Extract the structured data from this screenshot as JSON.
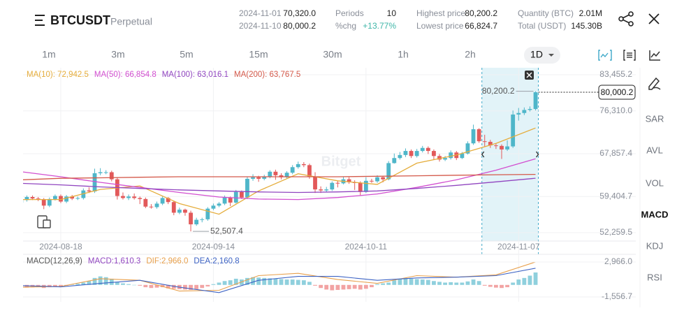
{
  "header": {
    "symbol": "BTCUSDT",
    "contract": "Perpetual",
    "range": {
      "start": {
        "date": "2024-11-01",
        "price": "70,320.0"
      },
      "end": {
        "date": "2024-11-10",
        "price": "80,000.2"
      }
    },
    "stats": [
      {
        "label": "Periods",
        "value": "10"
      },
      {
        "label": "%chg",
        "value": "+13.77%"
      },
      {
        "label": "Highest price",
        "value": "80,200.2"
      },
      {
        "label": "Lowest price",
        "value": "66,824.7"
      },
      {
        "label": "Quantity (BTC)",
        "value": "2.01M"
      },
      {
        "label": "Total (USDT)",
        "value": "145.30B"
      }
    ]
  },
  "timeframes": [
    "1m",
    "3m",
    "5m",
    "15m",
    "30m",
    "1h",
    "2h",
    "1D"
  ],
  "side_indicators": [
    "SAR",
    "AVL",
    "VOL",
    "MACD",
    "KDJ",
    "RSI"
  ],
  "chart_data": {
    "type": "candlestick",
    "watermark": "Bitget",
    "up_color": "#4fb6c9",
    "down_color": "#e2595a",
    "x": [
      "2024-08-11",
      "2024-08-12",
      "2024-08-13",
      "2024-08-14",
      "2024-08-15",
      "2024-08-16",
      "2024-08-17",
      "2024-08-18",
      "2024-08-19",
      "2024-08-20",
      "2024-08-21",
      "2024-08-22",
      "2024-08-23",
      "2024-08-24",
      "2024-08-25",
      "2024-08-26",
      "2024-08-27",
      "2024-08-28",
      "2024-08-29",
      "2024-08-30",
      "2024-08-31",
      "2024-09-01",
      "2024-09-02",
      "2024-09-03",
      "2024-09-04",
      "2024-09-05",
      "2024-09-06",
      "2024-09-07",
      "2024-09-08",
      "2024-09-09",
      "2024-09-10",
      "2024-09-11",
      "2024-09-12",
      "2024-09-13",
      "2024-09-14",
      "2024-09-15",
      "2024-09-16",
      "2024-09-17",
      "2024-09-18",
      "2024-09-19",
      "2024-09-20",
      "2024-09-21",
      "2024-09-22",
      "2024-09-23",
      "2024-09-24",
      "2024-09-25",
      "2024-09-26",
      "2024-09-27",
      "2024-09-28",
      "2024-09-29",
      "2024-09-30",
      "2024-10-01",
      "2024-10-02",
      "2024-10-03",
      "2024-10-04",
      "2024-10-05",
      "2024-10-06",
      "2024-10-07",
      "2024-10-08",
      "2024-10-09",
      "2024-10-10",
      "2024-10-11",
      "2024-10-12",
      "2024-10-13",
      "2024-10-14",
      "2024-10-15",
      "2024-10-16",
      "2024-10-17",
      "2024-10-18",
      "2024-10-19",
      "2024-10-20",
      "2024-10-21",
      "2024-10-22",
      "2024-10-23",
      "2024-10-24",
      "2024-10-25",
      "2024-10-26",
      "2024-10-27",
      "2024-10-28",
      "2024-10-29",
      "2024-10-30",
      "2024-10-31",
      "2024-11-01",
      "2024-11-02",
      "2024-11-03",
      "2024-11-04",
      "2024-11-05",
      "2024-11-06",
      "2024-11-07",
      "2024-11-08",
      "2024-11-09",
      "2024-11-10"
    ],
    "ohlc": [
      [
        58200,
        59000,
        57900,
        58700
      ],
      [
        58700,
        59600,
        58400,
        59300
      ],
      [
        59300,
        59600,
        58700,
        59000
      ],
      [
        59000,
        59300,
        58500,
        58800
      ],
      [
        58800,
        59100,
        56900,
        57600
      ],
      [
        57600,
        59200,
        57300,
        58900
      ],
      [
        58900,
        59800,
        58600,
        59500
      ],
      [
        59500,
        59800,
        58100,
        58400
      ],
      [
        58400,
        59700,
        58100,
        59400
      ],
      [
        59400,
        59700,
        58700,
        59000
      ],
      [
        59000,
        59400,
        58700,
        59100
      ],
      [
        59100,
        61000,
        58800,
        60600
      ],
      [
        60600,
        61200,
        60100,
        60400
      ],
      [
        60400,
        64900,
        60100,
        64000
      ],
      [
        64000,
        65000,
        63600,
        64200
      ],
      [
        64200,
        64600,
        63800,
        64200
      ],
      [
        64200,
        64500,
        62400,
        62800
      ],
      [
        62800,
        63100,
        58800,
        59500
      ],
      [
        59500,
        60200,
        58800,
        59100
      ],
      [
        59100,
        59800,
        58700,
        59400
      ],
      [
        59400,
        60000,
        58800,
        59100
      ],
      [
        59100,
        59400,
        57900,
        58900
      ],
      [
        58900,
        59200,
        57100,
        57400
      ],
      [
        57400,
        57900,
        57000,
        57300
      ],
      [
        57300,
        58400,
        57000,
        58000
      ],
      [
        58000,
        59400,
        57700,
        59100
      ],
      [
        59100,
        59300,
        57900,
        58300
      ],
      [
        58300,
        58600,
        55700,
        56200
      ],
      [
        56200,
        57200,
        55900,
        56800
      ],
      [
        56800,
        57000,
        55600,
        56200
      ],
      [
        56200,
        56600,
        52507.4,
        53900
      ],
      [
        53900,
        55200,
        53600,
        54800
      ],
      [
        54800,
        55200,
        54300,
        54900
      ],
      [
        54900,
        57300,
        54600,
        57000
      ],
      [
        57000,
        58000,
        56700,
        57600
      ],
      [
        57600,
        58300,
        57300,
        58000
      ],
      [
        58000,
        59600,
        57700,
        59200
      ],
      [
        59200,
        59400,
        57500,
        58200
      ],
      [
        58200,
        60700,
        58000,
        60300
      ],
      [
        60300,
        60600,
        58900,
        59200
      ],
      [
        59200,
        63300,
        58900,
        62900
      ],
      [
        62900,
        63800,
        62500,
        63200
      ],
      [
        63200,
        63500,
        62300,
        62900
      ],
      [
        62900,
        63700,
        62600,
        63300
      ],
      [
        63300,
        64600,
        63000,
        64300
      ],
      [
        64300,
        64700,
        62700,
        63600
      ],
      [
        63600,
        64000,
        62800,
        63200
      ],
      [
        63200,
        64400,
        62900,
        64100
      ],
      [
        64100,
        65600,
        63800,
        65200
      ],
      [
        65200,
        66300,
        64900,
        65800
      ],
      [
        65800,
        66200,
        65200,
        65600
      ],
      [
        65600,
        65900,
        62900,
        63300
      ],
      [
        63300,
        64200,
        60100,
        60800
      ],
      [
        60800,
        61400,
        60100,
        60600
      ],
      [
        60600,
        61300,
        60300,
        60800
      ],
      [
        60800,
        62400,
        60500,
        62100
      ],
      [
        62100,
        62500,
        61200,
        62000
      ],
      [
        62000,
        63300,
        61800,
        62800
      ],
      [
        62800,
        63200,
        61900,
        62200
      ],
      [
        62200,
        62600,
        60700,
        62100
      ],
      [
        62100,
        62400,
        59600,
        60300
      ],
      [
        60300,
        63200,
        60100,
        62500
      ],
      [
        62500,
        62900,
        62100,
        62400
      ],
      [
        62400,
        63600,
        62100,
        63200
      ],
      [
        63200,
        63500,
        62200,
        62800
      ],
      [
        62800,
        66400,
        62600,
        66000
      ],
      [
        66000,
        67900,
        65900,
        67000
      ],
      [
        67000,
        68200,
        66700,
        67600
      ],
      [
        67600,
        68900,
        67200,
        68400
      ],
      [
        68400,
        68700,
        67000,
        67400
      ],
      [
        67400,
        68800,
        67100,
        68400
      ],
      [
        68400,
        69400,
        68100,
        69000
      ],
      [
        69000,
        69300,
        67800,
        68400
      ],
      [
        68400,
        68700,
        66600,
        67400
      ],
      [
        67400,
        67800,
        66300,
        66700
      ],
      [
        66700,
        67400,
        66400,
        67000
      ],
      [
        67000,
        68500,
        66700,
        68100
      ],
      [
        68100,
        68400,
        66600,
        67000
      ],
      [
        67000,
        68200,
        66800,
        67900
      ],
      [
        67900,
        70300,
        67700,
        69900
      ],
      [
        69900,
        73600,
        69600,
        72700
      ],
      [
        72700,
        72900,
        70000,
        70320
      ],
      [
        70320,
        71600,
        69300,
        70200
      ],
      [
        70200,
        70600,
        69000,
        69500
      ],
      [
        69500,
        69900,
        68800,
        69400
      ],
      [
        69400,
        69700,
        66824.7,
        68700
      ],
      [
        68700,
        70500,
        68400,
        69300
      ],
      [
        69300,
        76400,
        69000,
        75600
      ],
      [
        75600,
        76900,
        74400,
        75900
      ],
      [
        75900,
        77000,
        75500,
        76500
      ],
      [
        76500,
        77200,
        76200,
        76700
      ],
      [
        76700,
        80200.2,
        76400,
        80000.2
      ]
    ],
    "ylim": [
      50600,
      84840
    ],
    "yticks": [
      {
        "value": 83455.2,
        "label": "83,455.2"
      },
      {
        "value": 76310.0,
        "label": "76,310.0"
      },
      {
        "value": 67857.4,
        "label": "67,857.4"
      },
      {
        "value": 59404.7,
        "label": "59,404.7"
      },
      {
        "value": 52259.5,
        "label": "52,259.5"
      }
    ],
    "xticks": [
      "2024-08-18",
      "2024-09-14",
      "2024-10-11",
      "2024-11-07"
    ],
    "grid": true,
    "max_label": {
      "value": 80200.2,
      "label": "80,200.2"
    },
    "min_label": {
      "value": 52507.4,
      "label": "52,507.4"
    },
    "last_price": {
      "value": 80000.2,
      "label": "80,000.2"
    },
    "ma_series": [
      {
        "name": "MA(10): 72,942.5",
        "color": "#e5ad3c",
        "x": [
          "2024-08-11",
          "2024-08-18",
          "2024-08-25",
          "2024-09-01",
          "2024-09-08",
          "2024-09-15",
          "2024-09-22",
          "2024-09-29",
          "2024-10-06",
          "2024-10-13",
          "2024-10-20",
          "2024-10-27",
          "2024-11-03",
          "2024-11-10"
        ],
        "values": [
          58800,
          58800,
          60800,
          61500,
          58000,
          55900,
          60500,
          63900,
          62500,
          61800,
          66000,
          67600,
          69900,
          72942.5
        ]
      },
      {
        "name": "MA(50): 66,854.8",
        "color": "#d24fd0",
        "x": [
          "2024-08-11",
          "2024-08-18",
          "2024-08-25",
          "2024-09-01",
          "2024-09-08",
          "2024-09-15",
          "2024-09-22",
          "2024-09-29",
          "2024-10-06",
          "2024-10-13",
          "2024-10-20",
          "2024-10-27",
          "2024-11-03",
          "2024-11-10"
        ],
        "values": [
          64300,
          63300,
          62200,
          61200,
          60200,
          59300,
          58900,
          58800,
          59200,
          59900,
          61200,
          62700,
          64600,
          66854.8
        ]
      },
      {
        "name": "MA(100): 63,016.1",
        "color": "#9146c0",
        "x": [
          "2024-08-11",
          "2024-08-18",
          "2024-08-25",
          "2024-09-01",
          "2024-09-08",
          "2024-09-15",
          "2024-09-22",
          "2024-09-29",
          "2024-10-06",
          "2024-10-13",
          "2024-10-20",
          "2024-10-27",
          "2024-11-03",
          "2024-11-10"
        ],
        "values": [
          62000,
          61700,
          61300,
          61000,
          60700,
          60500,
          60300,
          60200,
          60300,
          60500,
          61000,
          61600,
          62300,
          63016.1
        ]
      },
      {
        "name": "MA(200): 63,767.5",
        "color": "#d4594a",
        "x": [
          "2024-08-11",
          "2024-08-18",
          "2024-08-25",
          "2024-09-01",
          "2024-09-08",
          "2024-09-15",
          "2024-09-22",
          "2024-09-29",
          "2024-10-06",
          "2024-10-13",
          "2024-10-20",
          "2024-10-27",
          "2024-11-03",
          "2024-11-10"
        ],
        "values": [
          62700,
          63000,
          63100,
          63200,
          63300,
          63300,
          63300,
          63300,
          63300,
          63400,
          63500,
          63600,
          63700,
          63767.5
        ]
      }
    ],
    "macd": {
      "title": "MACD(12,26,9)",
      "ylim": [
        -2190,
        3780
      ],
      "yticks": [
        {
          "value": 2966.0,
          "label": "2,966.0"
        },
        {
          "value": -1556.7,
          "label": "-1,556.7"
        }
      ],
      "histogram": {
        "name": "MACD:1,610.3",
        "color": "#9146c0",
        "up_color": "#8fd0dd",
        "down_color": "#f2a3a3",
        "values": [
          -300,
          -350,
          -320,
          -280,
          -400,
          -300,
          -250,
          -280,
          -100,
          50,
          150,
          300,
          500,
          900,
          1100,
          1000,
          800,
          400,
          200,
          100,
          0,
          -100,
          -300,
          -400,
          -350,
          -300,
          -450,
          -500,
          -550,
          -600,
          -650,
          -550,
          -400,
          -200,
          100,
          300,
          500,
          600,
          800,
          700,
          900,
          1000,
          950,
          900,
          850,
          800,
          750,
          700,
          700,
          650,
          600,
          400,
          -100,
          -400,
          -600,
          -700,
          -650,
          -600,
          -550,
          -500,
          -600,
          -500,
          -300,
          100,
          200,
          300,
          600,
          800,
          850,
          800,
          750,
          700,
          650,
          500,
          400,
          300,
          350,
          300,
          300,
          450,
          700,
          500,
          -100,
          -250,
          -350,
          -400,
          -300,
          300,
          700,
          900,
          1200,
          1610.3
        ]
      },
      "lines": [
        {
          "name": "DIF:2,966.0",
          "color": "#e8a04c",
          "x": [
            "2024-08-11",
            "2024-08-18",
            "2024-08-25",
            "2024-09-01",
            "2024-09-08",
            "2024-09-15",
            "2024-09-22",
            "2024-09-29",
            "2024-10-06",
            "2024-10-13",
            "2024-10-20",
            "2024-10-27",
            "2024-11-03",
            "2024-11-10"
          ],
          "values": [
            -300,
            -200,
            800,
            600,
            -800,
            -700,
            1200,
            1500,
            700,
            200,
            1200,
            1000,
            1300,
            2966.0
          ]
        },
        {
          "name": "DEA:2,160.8",
          "color": "#3d63c4",
          "x": [
            "2024-08-11",
            "2024-08-18",
            "2024-08-25",
            "2024-09-01",
            "2024-09-08",
            "2024-09-15",
            "2024-09-22",
            "2024-09-29",
            "2024-10-06",
            "2024-10-13",
            "2024-10-20",
            "2024-10-27",
            "2024-11-03",
            "2024-11-10"
          ],
          "values": [
            -100,
            -250,
            200,
            600,
            -300,
            -1000,
            600,
            1100,
            1100,
            600,
            900,
            1000,
            1200,
            2160.8
          ]
        }
      ]
    }
  }
}
